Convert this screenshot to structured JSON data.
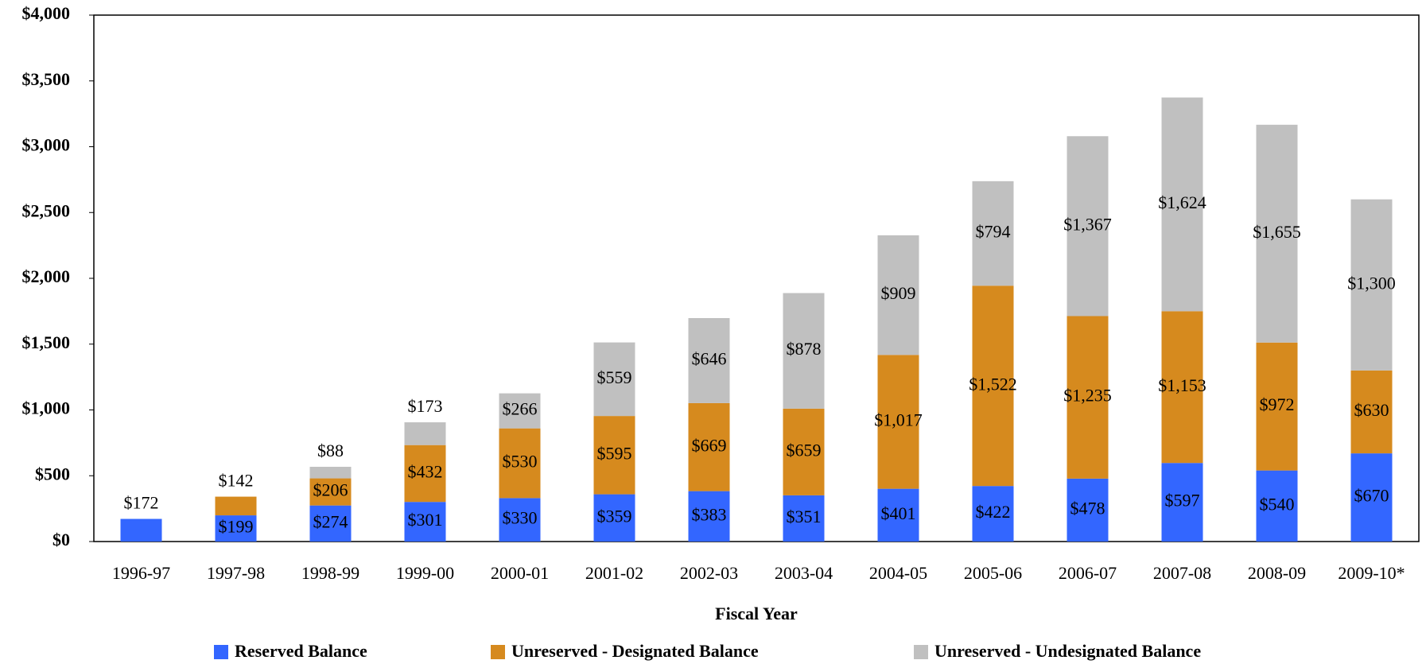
{
  "chart_data": {
    "type": "stacked-bar",
    "x_label": "Fiscal Year",
    "categories": [
      "1996-97",
      "1997-98",
      "1998-99",
      "1999-00",
      "2000-01",
      "2001-02",
      "2002-03",
      "2003-04",
      "2004-05",
      "2005-06",
      "2006-07",
      "2007-08",
      "2008-09",
      "2009-10*"
    ],
    "series": [
      {
        "name": "Reserved Balance",
        "color": "#3366ff",
        "values": [
          172,
          199,
          274,
          301,
          330,
          359,
          383,
          351,
          401,
          422,
          478,
          597,
          540,
          670
        ],
        "value_labels": [
          "$172",
          "$199",
          "$274",
          "$301",
          "$330",
          "$359",
          "$383",
          "$351",
          "$401",
          "$422",
          "$478",
          "$597",
          "$540",
          "$670"
        ]
      },
      {
        "name": "Unreserved - Designated Balance",
        "color": "#d68a1e",
        "values": [
          null,
          142,
          206,
          432,
          530,
          595,
          669,
          659,
          1017,
          1522,
          1235,
          1153,
          972,
          630
        ],
        "value_labels": [
          null,
          "$142",
          "$206",
          "$432",
          "$530",
          "$595",
          "$669",
          "$659",
          "$1,017",
          "$1,522",
          "$1,235",
          "$1,153",
          "$972",
          "$630"
        ]
      },
      {
        "name": "Unreserved - Undesignated Balance",
        "color": "#c0c0c0",
        "values": [
          null,
          null,
          88,
          173,
          266,
          559,
          646,
          878,
          909,
          794,
          1367,
          1624,
          1655,
          1300
        ],
        "value_labels": [
          null,
          null,
          "$88",
          "$173",
          "$266",
          "$559",
          "$646",
          "$878",
          "$909",
          "$794",
          "$1,367",
          "$1,624",
          "$1,655",
          "$1,300"
        ]
      }
    ],
    "ylim": [
      0,
      4000
    ],
    "yticks": [
      {
        "value": 0,
        "label": "$0"
      },
      {
        "value": 500,
        "label": "$500"
      },
      {
        "value": 1000,
        "label": "$1,000"
      },
      {
        "value": 1500,
        "label": "$1,500"
      },
      {
        "value": 2000,
        "label": "$2,000"
      },
      {
        "value": 2500,
        "label": "$2,500"
      },
      {
        "value": 3000,
        "label": "$3,000"
      },
      {
        "value": 3500,
        "label": "$3,500"
      },
      {
        "value": 4000,
        "label": "$4,000"
      }
    ]
  }
}
